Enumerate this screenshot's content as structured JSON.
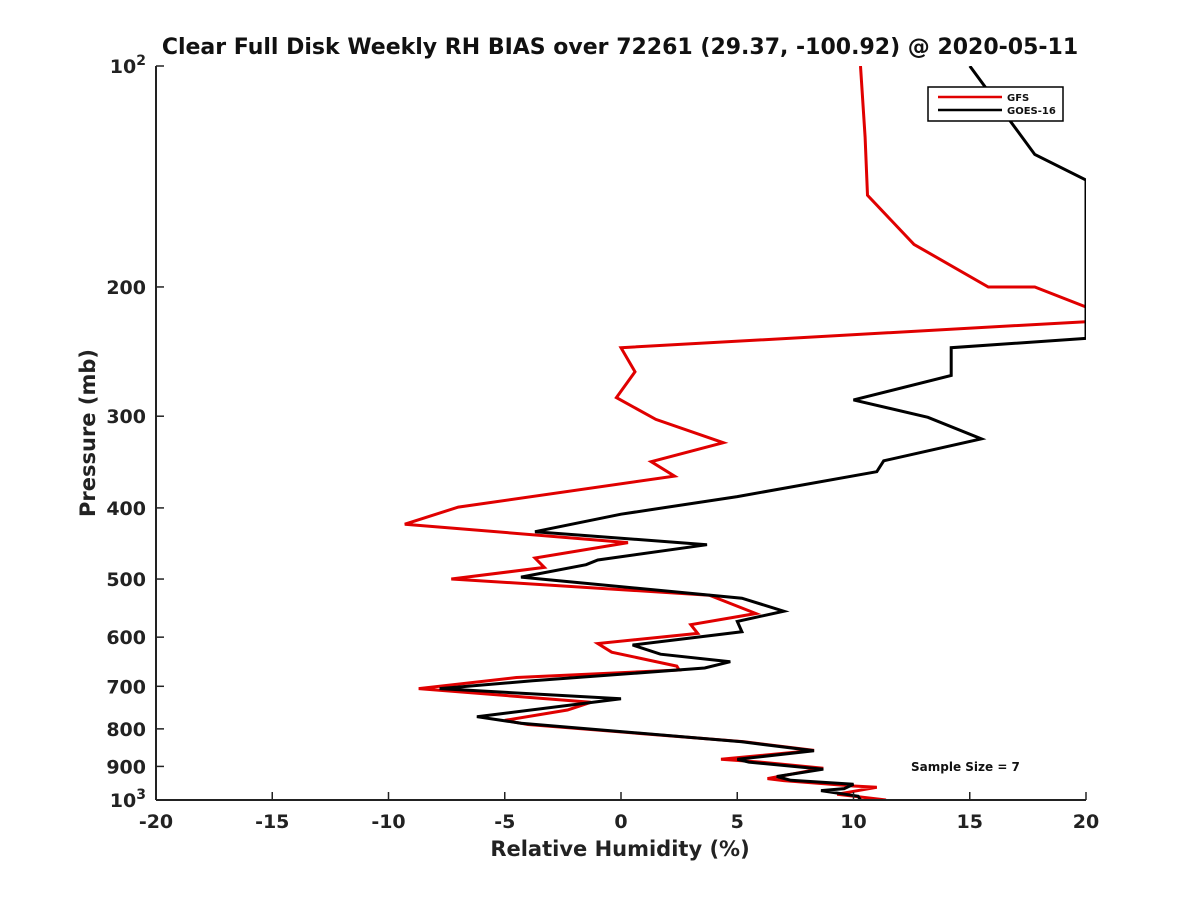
{
  "chart_data": {
    "type": "line",
    "title": "Clear Full Disk Weekly RH BIAS over 72261 (29.37, -100.92) @ 2020-05-11",
    "xlabel": "Relative Humidity (%)",
    "ylabel": "Pressure (mb)",
    "xlim": [
      -20,
      20
    ],
    "ylim": [
      100,
      1000
    ],
    "y_scale": "log",
    "y_reversed": true,
    "xticks": [
      -20,
      -15,
      -10,
      -5,
      0,
      5,
      10,
      15,
      20
    ],
    "xtick_labels": [
      "-20",
      "-15",
      "-10",
      "-5",
      "0",
      "5",
      "10",
      "15",
      "20"
    ],
    "yticks": [
      100,
      200,
      300,
      400,
      500,
      600,
      700,
      800,
      900,
      1000
    ],
    "ytick_labels": [
      {
        "base": "10",
        "exp": "2"
      },
      {
        "base": "200",
        "exp": ""
      },
      {
        "base": "300",
        "exp": ""
      },
      {
        "base": "400",
        "exp": ""
      },
      {
        "base": "500",
        "exp": ""
      },
      {
        "base": "600",
        "exp": ""
      },
      {
        "base": "700",
        "exp": ""
      },
      {
        "base": "800",
        "exp": ""
      },
      {
        "base": "900",
        "exp": ""
      },
      {
        "base": "10",
        "exp": "3"
      }
    ],
    "grid": false,
    "legend_position": "top-right",
    "annotation": "Sample Size = 7",
    "series": [
      {
        "name": "GFS",
        "color": "#e00000",
        "points": [
          [
            10.3,
            100
          ],
          [
            10.5,
            125
          ],
          [
            10.6,
            150
          ],
          [
            12.6,
            175
          ],
          [
            15.8,
            200
          ],
          [
            17.8,
            200
          ],
          [
            20.0,
            213
          ],
          [
            20.0,
            223
          ],
          [
            0.0,
            242
          ],
          [
            0.6,
            261
          ],
          [
            -0.2,
            283
          ],
          [
            1.5,
            303
          ],
          [
            4.4,
            326
          ],
          [
            1.3,
            346
          ],
          [
            2.3,
            362
          ],
          [
            -7.0,
            399
          ],
          [
            -9.3,
            421
          ],
          [
            0.3,
            446
          ],
          [
            -3.7,
            468
          ],
          [
            -3.3,
            482
          ],
          [
            -7.3,
            500
          ],
          [
            3.8,
            526
          ],
          [
            5.8,
            557
          ],
          [
            3.0,
            577
          ],
          [
            3.3,
            593
          ],
          [
            -1.0,
            612
          ],
          [
            -0.4,
            629
          ],
          [
            2.4,
            657
          ],
          [
            2.5,
            665
          ],
          [
            -4.5,
            681
          ],
          [
            -8.7,
            705
          ],
          [
            -1.3,
            736
          ],
          [
            -2.3,
            754
          ],
          [
            -5.0,
            779
          ],
          [
            -4.0,
            789
          ],
          [
            5.3,
            833
          ],
          [
            8.3,
            856
          ],
          [
            4.3,
            880
          ],
          [
            6.0,
            888
          ],
          [
            8.7,
            905
          ],
          [
            6.3,
            935
          ],
          [
            7.0,
            941
          ],
          [
            10.0,
            957
          ],
          [
            11.0,
            961
          ],
          [
            9.3,
            982
          ],
          [
            11.4,
            1000
          ]
        ]
      },
      {
        "name": "GOES-16",
        "color": "#000000",
        "points": [
          [
            15.0,
            100
          ],
          [
            17.8,
            132
          ],
          [
            20.0,
            143
          ],
          [
            20.0,
            235
          ],
          [
            14.2,
            242
          ],
          [
            14.2,
            264
          ],
          [
            10.0,
            285
          ],
          [
            13.2,
            301
          ],
          [
            15.5,
            322
          ],
          [
            11.3,
            345
          ],
          [
            11.0,
            357
          ],
          [
            5.0,
            386
          ],
          [
            0.0,
            408
          ],
          [
            -3.7,
            431
          ],
          [
            3.7,
            449
          ],
          [
            -1.0,
            471
          ],
          [
            -1.5,
            478
          ],
          [
            -4.3,
            497
          ],
          [
            5.2,
            531
          ],
          [
            7.0,
            553
          ],
          [
            5.0,
            571
          ],
          [
            5.2,
            590
          ],
          [
            0.5,
            615
          ],
          [
            1.7,
            633
          ],
          [
            4.7,
            648
          ],
          [
            3.6,
            661
          ],
          [
            -3.8,
            688
          ],
          [
            -7.8,
            705
          ],
          [
            0.0,
            728
          ],
          [
            -6.2,
            770
          ],
          [
            -4.3,
            786
          ],
          [
            5.2,
            833
          ],
          [
            8.3,
            857
          ],
          [
            5.0,
            880
          ],
          [
            5.5,
            888
          ],
          [
            8.7,
            908
          ],
          [
            6.7,
            929
          ],
          [
            7.3,
            940
          ],
          [
            10.0,
            952
          ],
          [
            9.6,
            965
          ],
          [
            8.6,
            971
          ],
          [
            10.2,
            988
          ],
          [
            10.3,
            1000
          ]
        ]
      }
    ]
  }
}
